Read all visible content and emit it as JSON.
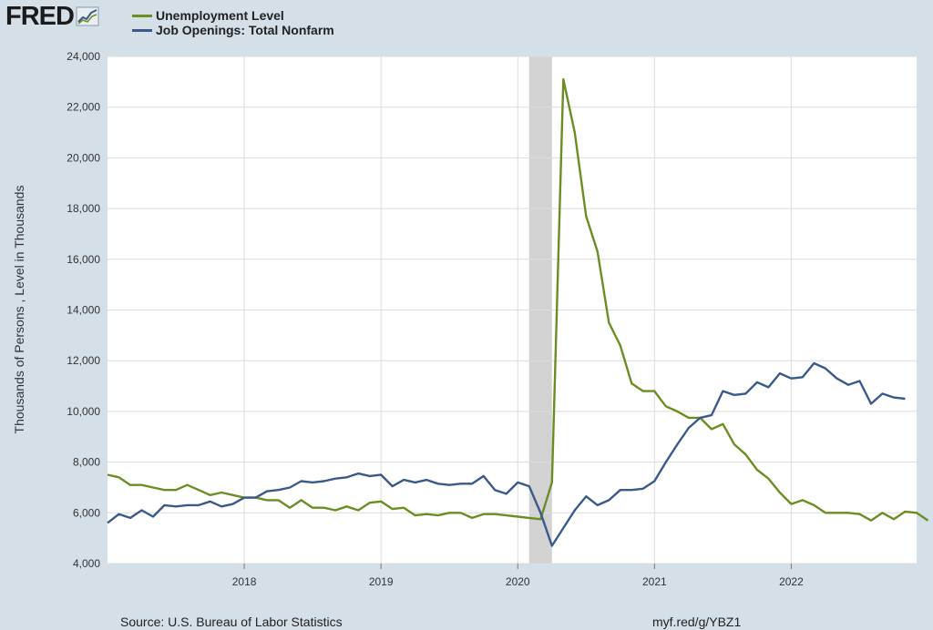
{
  "header": {
    "logo_text": "FRED"
  },
  "chart_data": {
    "type": "line",
    "title": "",
    "xlabel": "",
    "ylabel": "Thousands of Persons , Level in Thousands",
    "ylim": [
      4000,
      24000
    ],
    "yticks": [
      4000,
      6000,
      8000,
      10000,
      12000,
      14000,
      16000,
      18000,
      20000,
      22000,
      24000
    ],
    "ytick_labels": [
      "4,000",
      "6,000",
      "8,000",
      "10,000",
      "12,000",
      "14,000",
      "16,000",
      "18,000",
      "20,000",
      "22,000",
      "24,000"
    ],
    "xlim": [
      "2017-01",
      "2022-12"
    ],
    "xticks": [
      "2018-01",
      "2019-01",
      "2020-01",
      "2021-01",
      "2022-01"
    ],
    "xtick_labels": [
      "2018",
      "2019",
      "2020",
      "2021",
      "2022"
    ],
    "grid": true,
    "legend_position": "top-left",
    "recession_shading": {
      "start": "2020-02",
      "end": "2020-04",
      "color": "#d2d2d2"
    },
    "series": [
      {
        "name": "Unemployment Level",
        "color": "#6b8e23",
        "start": "2017-01",
        "frequency": "monthly",
        "values": [
          7500,
          7400,
          7100,
          7100,
          7000,
          6900,
          6900,
          7100,
          6900,
          6700,
          6800,
          6700,
          6600,
          6600,
          6500,
          6500,
          6200,
          6500,
          6200,
          6200,
          6100,
          6250,
          6100,
          6400,
          6450,
          6150,
          6200,
          5900,
          5950,
          5900,
          6000,
          6000,
          5800,
          5950,
          5950,
          5900,
          5850,
          5800,
          5750,
          7200,
          23100,
          21000,
          17700,
          16300,
          13500,
          12600,
          11100,
          10800,
          10800,
          10200,
          10000,
          9750,
          9750,
          9300,
          9500,
          8700,
          8300,
          7700,
          7350,
          6800,
          6350,
          6500,
          6300,
          6000,
          6000,
          6000,
          5950,
          5700,
          6000,
          5750,
          6050,
          6000,
          5700
        ]
      },
      {
        "name": "Job Openings: Total Nonfarm",
        "color": "#3a5a8a",
        "start": "2017-01",
        "frequency": "monthly",
        "values": [
          5600,
          5950,
          5800,
          6100,
          5850,
          6300,
          6250,
          6300,
          6300,
          6450,
          6250,
          6350,
          6600,
          6600,
          6850,
          6900,
          7000,
          7250,
          7200,
          7250,
          7350,
          7400,
          7550,
          7450,
          7500,
          7050,
          7300,
          7200,
          7300,
          7150,
          7100,
          7150,
          7150,
          7450,
          6900,
          6750,
          7200,
          7050,
          6000,
          4700,
          5400,
          6100,
          6650,
          6300,
          6500,
          6900,
          6900,
          6950,
          7250,
          8000,
          8700,
          9350,
          9750,
          9850,
          10800,
          10650,
          10700,
          11150,
          10950,
          11500,
          11300,
          11350,
          11900,
          11700,
          11300,
          11050,
          11200,
          10300,
          10700,
          10550,
          10500
        ]
      }
    ]
  },
  "footer": {
    "source": "Source: U.S. Bureau of Labor Statistics",
    "link": "myf.red/g/YBZ1"
  }
}
